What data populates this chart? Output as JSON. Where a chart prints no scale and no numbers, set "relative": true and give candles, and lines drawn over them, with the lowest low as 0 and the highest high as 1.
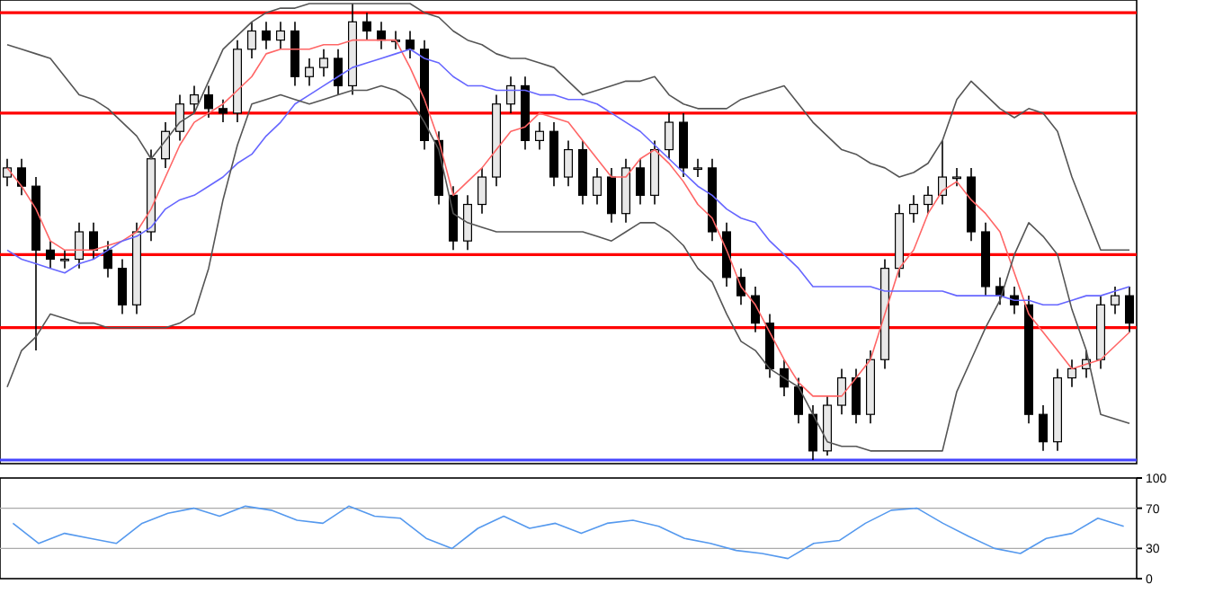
{
  "chart_data": [
    {
      "type": "candlestick",
      "relative": true,
      "tick_labels": false,
      "categories": [
        null,
        null,
        null,
        null,
        null,
        null,
        null,
        null,
        null,
        null,
        null,
        null,
        null,
        null,
        null,
        null,
        null,
        null,
        null,
        null,
        null,
        null,
        null,
        null,
        null,
        null,
        null,
        null,
        null,
        null,
        null,
        null,
        null,
        null,
        null,
        null,
        null,
        null,
        null,
        null,
        null,
        null,
        null,
        null,
        null,
        null,
        null,
        null,
        null,
        null,
        null,
        null,
        null,
        null,
        null,
        null,
        null,
        null,
        null,
        null,
        null,
        null,
        null,
        null,
        null,
        null,
        null,
        null,
        null,
        null,
        null,
        null,
        null,
        null,
        null,
        null,
        null,
        null,
        null
      ],
      "ohlc": [
        [
          0.62,
          0.66,
          0.6,
          0.64
        ],
        [
          0.64,
          0.66,
          0.58,
          0.6
        ],
        [
          0.6,
          0.62,
          0.24,
          0.46
        ],
        [
          0.46,
          0.48,
          0.42,
          0.44
        ],
        [
          0.44,
          0.46,
          0.42,
          0.44
        ],
        [
          0.44,
          0.52,
          0.42,
          0.5
        ],
        [
          0.5,
          0.52,
          0.44,
          0.46
        ],
        [
          0.46,
          0.48,
          0.4,
          0.42
        ],
        [
          0.42,
          0.44,
          0.32,
          0.34
        ],
        [
          0.34,
          0.52,
          0.32,
          0.5
        ],
        [
          0.5,
          0.68,
          0.48,
          0.66
        ],
        [
          0.66,
          0.74,
          0.64,
          0.72
        ],
        [
          0.72,
          0.8,
          0.7,
          0.78
        ],
        [
          0.78,
          0.82,
          0.76,
          0.8
        ],
        [
          0.8,
          0.82,
          0.75,
          0.77
        ],
        [
          0.77,
          0.79,
          0.74,
          0.76
        ],
        [
          0.76,
          0.92,
          0.74,
          0.9
        ],
        [
          0.9,
          0.96,
          0.88,
          0.94
        ],
        [
          0.94,
          0.96,
          0.9,
          0.92
        ],
        [
          0.92,
          0.96,
          0.9,
          0.94
        ],
        [
          0.94,
          0.96,
          0.82,
          0.84
        ],
        [
          0.84,
          0.88,
          0.82,
          0.86
        ],
        [
          0.86,
          0.9,
          0.84,
          0.88
        ],
        [
          0.88,
          0.9,
          0.8,
          0.82
        ],
        [
          0.82,
          1,
          0.8,
          0.96
        ],
        [
          0.96,
          0.98,
          0.92,
          0.94
        ],
        [
          0.94,
          0.96,
          0.9,
          0.92
        ],
        [
          0.92,
          0.94,
          0.9,
          0.92
        ],
        [
          0.92,
          0.94,
          0.88,
          0.9
        ],
        [
          0.9,
          0.92,
          0.68,
          0.7
        ],
        [
          0.7,
          0.72,
          0.56,
          0.58
        ],
        [
          0.58,
          0.6,
          0.46,
          0.48
        ],
        [
          0.48,
          0.58,
          0.46,
          0.56
        ],
        [
          0.56,
          0.64,
          0.54,
          0.62
        ],
        [
          0.62,
          0.8,
          0.6,
          0.78
        ],
        [
          0.78,
          0.84,
          0.76,
          0.82
        ],
        [
          0.82,
          0.84,
          0.68,
          0.7
        ],
        [
          0.7,
          0.74,
          0.68,
          0.72
        ],
        [
          0.72,
          0.74,
          0.6,
          0.62
        ],
        [
          0.62,
          0.7,
          0.6,
          0.68
        ],
        [
          0.68,
          0.7,
          0.56,
          0.58
        ],
        [
          0.58,
          0.64,
          0.56,
          0.62
        ],
        [
          0.62,
          0.64,
          0.52,
          0.54
        ],
        [
          0.54,
          0.66,
          0.52,
          0.64
        ],
        [
          0.64,
          0.66,
          0.56,
          0.58
        ],
        [
          0.58,
          0.7,
          0.56,
          0.68
        ],
        [
          0.68,
          0.76,
          0.66,
          0.74
        ],
        [
          0.74,
          0.76,
          0.62,
          0.64
        ],
        [
          0.64,
          0.66,
          0.62,
          0.64
        ],
        [
          0.64,
          0.66,
          0.48,
          0.5
        ],
        [
          0.5,
          0.52,
          0.38,
          0.4
        ],
        [
          0.4,
          0.42,
          0.34,
          0.36
        ],
        [
          0.36,
          0.38,
          0.28,
          0.3
        ],
        [
          0.3,
          0.32,
          0.18,
          0.2
        ],
        [
          0.2,
          0.22,
          0.14,
          0.16
        ],
        [
          0.16,
          0.18,
          0.08,
          0.1
        ],
        [
          0.1,
          0.12,
          0,
          0.02
        ],
        [
          0.02,
          0.14,
          0.01,
          0.12
        ],
        [
          0.12,
          0.2,
          0.1,
          0.18
        ],
        [
          0.18,
          0.2,
          0.08,
          0.1
        ],
        [
          0.1,
          0.24,
          0.08,
          0.22
        ],
        [
          0.22,
          0.44,
          0.2,
          0.42
        ],
        [
          0.42,
          0.56,
          0.4,
          0.54
        ],
        [
          0.54,
          0.58,
          0.52,
          0.56
        ],
        [
          0.56,
          0.6,
          0.54,
          0.58
        ],
        [
          0.58,
          0.7,
          0.56,
          0.62
        ],
        [
          0.62,
          0.64,
          0.6,
          0.62
        ],
        [
          0.62,
          0.64,
          0.48,
          0.5
        ],
        [
          0.5,
          0.52,
          0.36,
          0.38
        ],
        [
          0.38,
          0.4,
          0.34,
          0.36
        ],
        [
          0.36,
          0.38,
          0.32,
          0.34
        ],
        [
          0.34,
          0.36,
          0.08,
          0.1
        ],
        [
          0.1,
          0.12,
          0.02,
          0.04
        ],
        [
          0.04,
          0.2,
          0.02,
          0.18
        ],
        [
          0.18,
          0.22,
          0.16,
          0.2
        ],
        [
          0.2,
          0.24,
          0.18,
          0.22
        ],
        [
          0.22,
          0.36,
          0.2,
          0.34
        ],
        [
          0.34,
          0.38,
          0.32,
          0.36
        ],
        [
          0.36,
          0.38,
          0.28,
          0.3
        ]
      ],
      "series": [
        {
          "type": "line",
          "color": "#ff6666",
          "values": [
            0.64,
            0.6,
            0.55,
            0.48,
            0.46,
            0.46,
            0.46,
            0.47,
            0.48,
            0.5,
            0.55,
            0.62,
            0.69,
            0.74,
            0.76,
            0.78,
            0.81,
            0.84,
            0.89,
            0.9,
            0.9,
            0.9,
            0.91,
            0.91,
            0.92,
            0.92,
            0.92,
            0.92,
            0.86,
            0.79,
            0.7,
            0.58,
            0.61,
            0.64,
            0.68,
            0.72,
            0.73,
            0.76,
            0.75,
            0.74,
            0.7,
            0.66,
            0.62,
            0.62,
            0.66,
            0.68,
            0.65,
            0.61,
            0.56,
            0.53,
            0.46,
            0.38,
            0.34,
            0.28,
            0.22,
            0.17,
            0.14,
            0.14,
            0.14,
            0.18,
            0.22,
            0.32,
            0.42,
            0.46,
            0.54,
            0.59,
            0.61,
            0.57,
            0.54,
            0.5,
            0.41,
            0.32,
            0.28,
            0.24,
            0.2,
            0.21,
            0.22,
            0.25,
            0.28
          ]
        },
        {
          "type": "line",
          "color": "#6666ff",
          "values": [
            0.46,
            0.44,
            0.43,
            0.42,
            0.41,
            0.43,
            0.44,
            0.46,
            0.48,
            0.49,
            0.51,
            0.55,
            0.57,
            0.58,
            0.6,
            0.62,
            0.65,
            0.67,
            0.71,
            0.74,
            0.78,
            0.8,
            0.82,
            0.84,
            0.86,
            0.87,
            0.88,
            0.89,
            0.9,
            0.88,
            0.87,
            0.84,
            0.82,
            0.82,
            0.81,
            0.81,
            0.81,
            0.8,
            0.8,
            0.79,
            0.79,
            0.78,
            0.76,
            0.74,
            0.72,
            0.69,
            0.66,
            0.63,
            0.6,
            0.58,
            0.55,
            0.53,
            0.52,
            0.48,
            0.45,
            0.42,
            0.38,
            0.38,
            0.38,
            0.38,
            0.38,
            0.37,
            0.37,
            0.37,
            0.37,
            0.37,
            0.36,
            0.36,
            0.36,
            0.36,
            0.35,
            0.35,
            0.34,
            0.34,
            0.35,
            0.36,
            0.36,
            0.37,
            0.38
          ]
        },
        {
          "type": "line",
          "color": "#555555",
          "values": [
            0.91,
            0.9,
            0.89,
            0.88,
            0.84,
            0.8,
            0.79,
            0.77,
            0.74,
            0.71,
            0.66,
            0.7,
            0.74,
            0.76,
            0.83,
            0.9,
            0.93,
            0.96,
            0.98,
            0.99,
            0.99,
            1,
            1,
            1,
            1,
            1,
            1,
            1,
            1,
            0.98,
            0.97,
            0.94,
            0.92,
            0.91,
            0.89,
            0.88,
            0.88,
            0.87,
            0.86,
            0.83,
            0.8,
            0.81,
            0.82,
            0.83,
            0.83,
            0.84,
            0.8,
            0.78,
            0.77,
            0.77,
            0.77,
            0.79,
            0.8,
            0.81,
            0.82,
            0.78,
            0.74,
            0.71,
            0.68,
            0.67,
            0.65,
            0.64,
            0.62,
            0.63,
            0.65,
            0.7,
            0.79,
            0.83,
            0.8,
            0.77,
            0.75,
            0.77,
            0.76,
            0.72,
            0.62,
            0.54,
            0.46,
            0.46,
            0.46
          ]
        },
        {
          "type": "line",
          "color": "#555555",
          "values": [
            0.16,
            0.24,
            0.27,
            0.32,
            0.31,
            0.3,
            0.3,
            0.29,
            0.29,
            0.29,
            0.29,
            0.29,
            0.3,
            0.32,
            0.42,
            0.57,
            0.69,
            0.78,
            0.79,
            0.8,
            0.79,
            0.78,
            0.79,
            0.8,
            0.81,
            0.81,
            0.82,
            0.81,
            0.79,
            0.74,
            0.68,
            0.54,
            0.52,
            0.51,
            0.5,
            0.5,
            0.5,
            0.5,
            0.5,
            0.5,
            0.5,
            0.49,
            0.48,
            0.5,
            0.52,
            0.52,
            0.5,
            0.47,
            0.42,
            0.39,
            0.32,
            0.26,
            0.24,
            0.2,
            0.18,
            0.16,
            0.1,
            0.04,
            0.03,
            0.03,
            0.02,
            0.02,
            0.02,
            0.02,
            0.02,
            0.02,
            0.15,
            0.22,
            0.29,
            0.35,
            0.45,
            0.52,
            0.49,
            0.45,
            0.33,
            0.24,
            0.1,
            0.09,
            0.08
          ]
        }
      ],
      "ref_lines": [
        {
          "axis": "y",
          "value": 0.98,
          "color": "#ff0000"
        },
        {
          "axis": "y",
          "value": 0.76,
          "color": "#ff0000"
        },
        {
          "axis": "y",
          "value": 0.45,
          "color": "#ff0000"
        },
        {
          "axis": "y",
          "value": 0.29,
          "color": "#ff0000"
        },
        {
          "axis": "y",
          "value": 0,
          "color": "#4444ff"
        }
      ]
    },
    {
      "type": "line",
      "ylim": [
        0,
        100
      ],
      "yticks": [
        0,
        30,
        70,
        100
      ],
      "tick_labels": "y",
      "categories": [
        null,
        null,
        null,
        null,
        null,
        null,
        null,
        null,
        null,
        null,
        null,
        null,
        null,
        null,
        null,
        null,
        null,
        null,
        null,
        null,
        null,
        null,
        null,
        null,
        null,
        null,
        null,
        null,
        null,
        null,
        null,
        null,
        null,
        null,
        null,
        null,
        null,
        null,
        null,
        null,
        null,
        null,
        null,
        null
      ],
      "ref_lines": [
        {
          "axis": "y",
          "value": 70,
          "color": "#aaaaaa"
        },
        {
          "axis": "y",
          "value": 30,
          "color": "#aaaaaa"
        }
      ],
      "series": [
        {
          "color": "#5599ee",
          "values": [
            55,
            35,
            45,
            40,
            35,
            55,
            65,
            70,
            62,
            72,
            68,
            58,
            55,
            72,
            62,
            60,
            40,
            30,
            50,
            62,
            50,
            55,
            45,
            55,
            58,
            52,
            40,
            35,
            28,
            25,
            20,
            35,
            38,
            55,
            68,
            70,
            55,
            42,
            30,
            25,
            40,
            45,
            60,
            52
          ]
        }
      ]
    }
  ]
}
